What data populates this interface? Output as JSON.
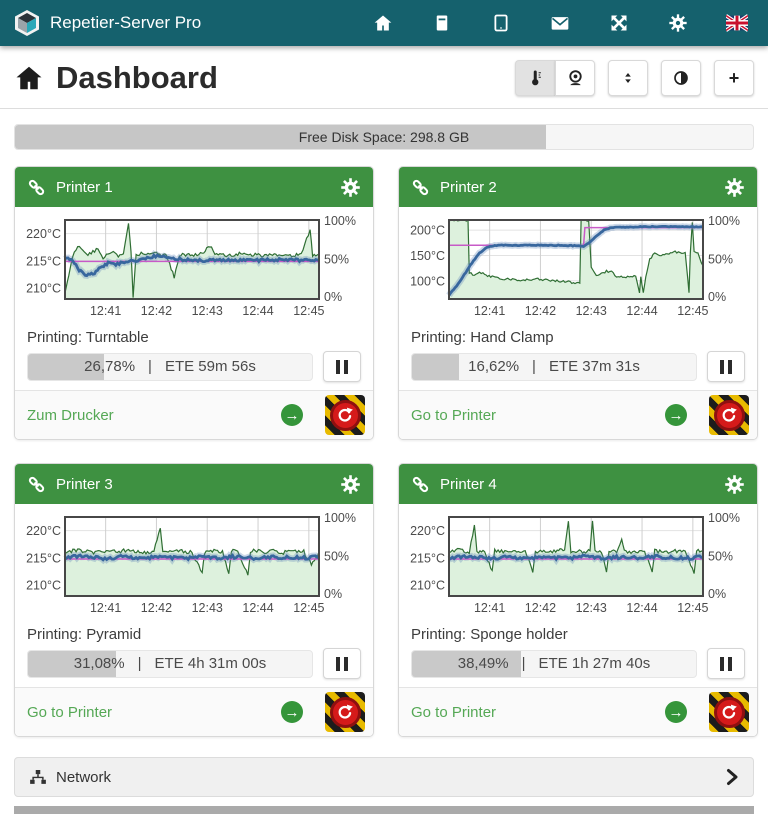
{
  "navbar": {
    "brand": "Repetier-Server Pro",
    "icons": [
      "home-icon",
      "printer-icon",
      "tablet-icon",
      "mail-icon",
      "expand-icon",
      "gear-icon",
      "flag-uk-icon"
    ]
  },
  "header": {
    "title": "Dashboard",
    "tools": [
      "thermometer-icon",
      "webcam-icon",
      "resize-icon",
      "contrast-icon",
      "add-icon"
    ],
    "add_label": "+"
  },
  "ui": {
    "separator": "|",
    "goto_arrow": "→"
  },
  "disk": {
    "label": "Free Disk Space: 298.8 GB",
    "percent": 72
  },
  "network": {
    "label": "Network"
  },
  "printers": [
    {
      "name": "Printer 1",
      "job": "Printing: Turntable",
      "progress_text": "26,78%",
      "progress_value": 26.78,
      "ete_text": "ETE 59m 56s",
      "link": "Zum Drucker",
      "chart": {
        "ymin": 208,
        "ymax": 222.5,
        "yticks": [
          {
            "v": 220,
            "label": "220°C"
          },
          {
            "v": 215,
            "label": "215°C"
          },
          {
            "v": 210,
            "label": "210°C"
          }
        ],
        "xticks": [
          {
            "p": 0.16,
            "label": "12:41"
          },
          {
            "p": 0.36,
            "label": "12:42"
          },
          {
            "p": 0.56,
            "label": "12:43"
          },
          {
            "p": 0.76,
            "label": "12:44"
          },
          {
            "p": 0.96,
            "label": "12:45"
          }
        ],
        "rticks": [
          "100%",
          "50%",
          "0%"
        ],
        "temp_noise": 0.25,
        "output_noise": 2.2,
        "temp": [
          [
            0,
            215.6
          ],
          [
            0.03,
            215.2
          ],
          [
            0.05,
            213.6
          ],
          [
            0.08,
            212.4
          ],
          [
            0.11,
            212.6
          ],
          [
            0.14,
            213.8
          ],
          [
            0.17,
            214.6
          ],
          [
            0.2,
            214.3
          ],
          [
            0.24,
            214.9
          ],
          [
            0.28,
            215.1
          ],
          [
            0.33,
            215.7
          ],
          [
            0.37,
            215.9
          ],
          [
            0.42,
            215.5
          ],
          [
            0.47,
            215.2
          ],
          [
            0.55,
            215.1
          ],
          [
            0.65,
            215.2
          ],
          [
            0.75,
            215.1
          ],
          [
            0.85,
            215.2
          ],
          [
            0.95,
            215.1
          ],
          [
            1,
            215.2
          ]
        ],
        "target": [
          [
            0,
            214.9
          ],
          [
            1,
            214.9
          ]
        ],
        "output": [
          [
            0,
            8
          ],
          [
            0.015,
            30
          ],
          [
            0.03,
            55
          ],
          [
            0.05,
            66
          ],
          [
            0.07,
            62
          ],
          [
            0.09,
            55
          ],
          [
            0.11,
            60
          ],
          [
            0.13,
            63
          ],
          [
            0.15,
            52
          ],
          [
            0.17,
            57
          ],
          [
            0.19,
            60
          ],
          [
            0.21,
            55
          ],
          [
            0.23,
            57
          ],
          [
            0.25,
            96
          ],
          [
            0.26,
            60
          ],
          [
            0.268,
            2
          ],
          [
            0.28,
            57
          ],
          [
            0.32,
            58
          ],
          [
            0.36,
            57
          ],
          [
            0.4,
            55
          ],
          [
            0.43,
            28
          ],
          [
            0.45,
            56
          ],
          [
            0.5,
            56
          ],
          [
            0.54,
            57
          ],
          [
            0.57,
            68
          ],
          [
            0.59,
            56
          ],
          [
            0.63,
            55
          ],
          [
            0.68,
            57
          ],
          [
            0.73,
            56
          ],
          [
            0.78,
            55
          ],
          [
            0.83,
            56
          ],
          [
            0.88,
            55
          ],
          [
            0.93,
            56
          ],
          [
            0.965,
            88
          ],
          [
            0.975,
            56
          ],
          [
            1,
            57
          ]
        ]
      }
    },
    {
      "name": "Printer 2",
      "job": "Printing: Hand Clamp",
      "progress_text": "16,62%",
      "progress_value": 16.62,
      "ete_text": "ETE 37m 31s",
      "link": "Go to Printer",
      "chart": {
        "ymin": 64,
        "ymax": 220,
        "yticks": [
          {
            "v": 200,
            "label": "200°C"
          },
          {
            "v": 150,
            "label": "150°C"
          },
          {
            "v": 100,
            "label": "100°C"
          }
        ],
        "xticks": [
          {
            "p": 0.16,
            "label": "12:41"
          },
          {
            "p": 0.36,
            "label": "12:42"
          },
          {
            "p": 0.56,
            "label": "12:43"
          },
          {
            "p": 0.76,
            "label": "12:44"
          },
          {
            "p": 0.96,
            "label": "12:45"
          }
        ],
        "rticks": [
          "100%",
          "50%",
          "0%"
        ],
        "temp_noise": 0.8,
        "output_noise": 1.5,
        "temp": [
          [
            0,
            72
          ],
          [
            0.03,
            90
          ],
          [
            0.06,
            112
          ],
          [
            0.09,
            135
          ],
          [
            0.12,
            155
          ],
          [
            0.15,
            166
          ],
          [
            0.18,
            170
          ],
          [
            0.25,
            170
          ],
          [
            0.35,
            170
          ],
          [
            0.45,
            170
          ],
          [
            0.5,
            169
          ],
          [
            0.53,
            168
          ],
          [
            0.55,
            174
          ],
          [
            0.58,
            188
          ],
          [
            0.61,
            200
          ],
          [
            0.64,
            205
          ],
          [
            0.7,
            206
          ],
          [
            0.8,
            207
          ],
          [
            0.9,
            207
          ],
          [
            1,
            206
          ]
        ],
        "target": [
          [
            0,
            170
          ],
          [
            0.53,
            170
          ],
          [
            0.535,
            205
          ],
          [
            1,
            205
          ]
        ],
        "output": [
          [
            0,
            100
          ],
          [
            0.075,
            100
          ],
          [
            0.08,
            34
          ],
          [
            0.1,
            30
          ],
          [
            0.12,
            34
          ],
          [
            0.14,
            31
          ],
          [
            0.17,
            28
          ],
          [
            0.2,
            26
          ],
          [
            0.25,
            25
          ],
          [
            0.3,
            24
          ],
          [
            0.35,
            25
          ],
          [
            0.4,
            24
          ],
          [
            0.45,
            22
          ],
          [
            0.49,
            21
          ],
          [
            0.515,
            20
          ],
          [
            0.52,
            100
          ],
          [
            0.55,
            99
          ],
          [
            0.56,
            40
          ],
          [
            0.58,
            30
          ],
          [
            0.6,
            33
          ],
          [
            0.62,
            35
          ],
          [
            0.64,
            34
          ],
          [
            0.66,
            29
          ],
          [
            0.69,
            27
          ],
          [
            0.71,
            28
          ],
          [
            0.735,
            29
          ],
          [
            0.75,
            8
          ],
          [
            0.755,
            28
          ],
          [
            0.765,
            8
          ],
          [
            0.775,
            28
          ],
          [
            0.79,
            50
          ],
          [
            0.81,
            58
          ],
          [
            0.83,
            55
          ],
          [
            0.86,
            57
          ],
          [
            0.89,
            60
          ],
          [
            0.91,
            58
          ],
          [
            0.93,
            59
          ],
          [
            0.945,
            8
          ],
          [
            0.95,
            58
          ],
          [
            0.958,
            97
          ],
          [
            0.965,
            60
          ],
          [
            0.98,
            58
          ],
          [
            1,
            42
          ]
        ]
      }
    },
    {
      "name": "Printer 3",
      "job": "Printing: Pyramid",
      "progress_text": "31,08%",
      "progress_value": 31.08,
      "ete_text": "ETE 4h 31m 00s",
      "link": "Go to Printer",
      "chart": {
        "ymin": 208,
        "ymax": 222.5,
        "yticks": [
          {
            "v": 220,
            "label": "220°C"
          },
          {
            "v": 215,
            "label": "215°C"
          },
          {
            "v": 210,
            "label": "210°C"
          }
        ],
        "xticks": [
          {
            "p": 0.16,
            "label": "12:41"
          },
          {
            "p": 0.36,
            "label": "12:42"
          },
          {
            "p": 0.56,
            "label": "12:43"
          },
          {
            "p": 0.76,
            "label": "12:44"
          },
          {
            "p": 0.96,
            "label": "12:45"
          }
        ],
        "rticks": [
          "100%",
          "50%",
          "0%"
        ],
        "temp_noise": 0.3,
        "output_noise": 2.5,
        "temp": [
          [
            0,
            215.1
          ],
          [
            0.08,
            215.3
          ],
          [
            0.15,
            214.8
          ],
          [
            0.22,
            215.2
          ],
          [
            0.3,
            215
          ],
          [
            0.38,
            215.2
          ],
          [
            0.45,
            214.9
          ],
          [
            0.52,
            215.1
          ],
          [
            0.6,
            215
          ],
          [
            0.68,
            215.2
          ],
          [
            0.75,
            214.9
          ],
          [
            0.82,
            215.1
          ],
          [
            0.9,
            215
          ],
          [
            1,
            215.1
          ]
        ],
        "target": [
          [
            0,
            214.8
          ],
          [
            1,
            214.8
          ]
        ],
        "output": [
          [
            0,
            56
          ],
          [
            0.05,
            58
          ],
          [
            0.1,
            55
          ],
          [
            0.15,
            57
          ],
          [
            0.2,
            56
          ],
          [
            0.25,
            58
          ],
          [
            0.3,
            55
          ],
          [
            0.35,
            57
          ],
          [
            0.375,
            86
          ],
          [
            0.385,
            57
          ],
          [
            0.42,
            56
          ],
          [
            0.46,
            57
          ],
          [
            0.5,
            55
          ],
          [
            0.54,
            30
          ],
          [
            0.55,
            56
          ],
          [
            0.58,
            57
          ],
          [
            0.62,
            56
          ],
          [
            0.645,
            28
          ],
          [
            0.655,
            57
          ],
          [
            0.68,
            56
          ],
          [
            0.72,
            26
          ],
          [
            0.73,
            57
          ],
          [
            0.78,
            56
          ],
          [
            0.82,
            57
          ],
          [
            0.86,
            55
          ],
          [
            0.9,
            57
          ],
          [
            0.94,
            56
          ],
          [
            0.97,
            40
          ],
          [
            1,
            56
          ]
        ]
      }
    },
    {
      "name": "Printer 4",
      "job": "Printing: Sponge holder",
      "progress_text": "38,49%",
      "progress_value": 38.49,
      "ete_text": "ETE 1h 27m 40s",
      "link": "Go to Printer",
      "chart": {
        "ymin": 208,
        "ymax": 222.5,
        "yticks": [
          {
            "v": 220,
            "label": "220°C"
          },
          {
            "v": 215,
            "label": "215°C"
          },
          {
            "v": 210,
            "label": "210°C"
          }
        ],
        "xticks": [
          {
            "p": 0.16,
            "label": "12:41"
          },
          {
            "p": 0.36,
            "label": "12:42"
          },
          {
            "p": 0.56,
            "label": "12:43"
          },
          {
            "p": 0.76,
            "label": "12:44"
          },
          {
            "p": 0.96,
            "label": "12:45"
          }
        ],
        "rticks": [
          "100%",
          "50%",
          "0%"
        ],
        "temp_noise": 0.3,
        "output_noise": 2.5,
        "temp": [
          [
            0,
            215
          ],
          [
            0.08,
            215.2
          ],
          [
            0.15,
            214.9
          ],
          [
            0.22,
            215.1
          ],
          [
            0.3,
            215
          ],
          [
            0.38,
            215.1
          ],
          [
            0.45,
            214.9
          ],
          [
            0.52,
            215.2
          ],
          [
            0.6,
            215
          ],
          [
            0.68,
            215.1
          ],
          [
            0.75,
            215
          ],
          [
            0.82,
            215.2
          ],
          [
            0.9,
            214.9
          ],
          [
            1,
            215.1
          ]
        ],
        "target": [
          [
            0,
            214.8
          ],
          [
            1,
            214.8
          ]
        ],
        "output": [
          [
            0,
            57
          ],
          [
            0.04,
            58
          ],
          [
            0.08,
            56
          ],
          [
            0.1,
            90
          ],
          [
            0.11,
            57
          ],
          [
            0.14,
            56
          ],
          [
            0.17,
            32
          ],
          [
            0.18,
            57
          ],
          [
            0.22,
            56
          ],
          [
            0.26,
            58
          ],
          [
            0.3,
            57
          ],
          [
            0.33,
            30
          ],
          [
            0.34,
            57
          ],
          [
            0.38,
            56
          ],
          [
            0.42,
            57
          ],
          [
            0.455,
            58
          ],
          [
            0.47,
            95
          ],
          [
            0.48,
            57
          ],
          [
            0.52,
            56
          ],
          [
            0.555,
            57
          ],
          [
            0.565,
            95
          ],
          [
            0.575,
            57
          ],
          [
            0.6,
            56
          ],
          [
            0.62,
            30
          ],
          [
            0.63,
            57
          ],
          [
            0.66,
            56
          ],
          [
            0.68,
            72
          ],
          [
            0.69,
            57
          ],
          [
            0.73,
            56
          ],
          [
            0.77,
            57
          ],
          [
            0.8,
            30
          ],
          [
            0.81,
            57
          ],
          [
            0.85,
            56
          ],
          [
            0.89,
            57
          ],
          [
            0.93,
            56
          ],
          [
            0.965,
            28
          ],
          [
            0.975,
            57
          ],
          [
            1,
            56
          ]
        ]
      }
    }
  ]
}
